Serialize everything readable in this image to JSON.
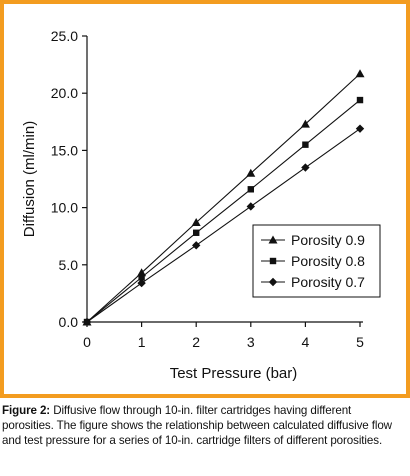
{
  "chart_data": {
    "type": "line",
    "xlabel": "Test Pressure (bar)",
    "ylabel": "Diffusion (ml/min)",
    "xlim": [
      0,
      5
    ],
    "ylim": [
      0,
      25
    ],
    "x_ticks": [
      "0",
      "1",
      "2",
      "3",
      "4",
      "5"
    ],
    "y_ticks": [
      "0.0",
      "5.0",
      "10.0",
      "15.0",
      "20.0",
      "25.0"
    ],
    "grid": false,
    "legend_position": "lower-right",
    "x": [
      0,
      1,
      2,
      3,
      4,
      5
    ],
    "series": [
      {
        "name": "Porosity 0.9",
        "marker": "triangle",
        "values": [
          0,
          4.3,
          8.7,
          13.0,
          17.3,
          21.7
        ]
      },
      {
        "name": "Porosity 0.8",
        "marker": "square",
        "values": [
          0,
          3.9,
          7.8,
          11.6,
          15.5,
          19.4
        ]
      },
      {
        "name": "Porosity 0.7",
        "marker": "diamond",
        "values": [
          0,
          3.4,
          6.7,
          10.1,
          13.5,
          16.9
        ]
      }
    ]
  },
  "caption": {
    "lead": "Figure 2:",
    "text": "Diffusive flow through 10-in. filter cartridges having different porosities. The figure shows the relationship between calculated diffusive flow and test pressure for a series of 10-in. cartridge filters of different porosities."
  },
  "colors": {
    "frame": "#f39c20",
    "ink": "#111111"
  }
}
